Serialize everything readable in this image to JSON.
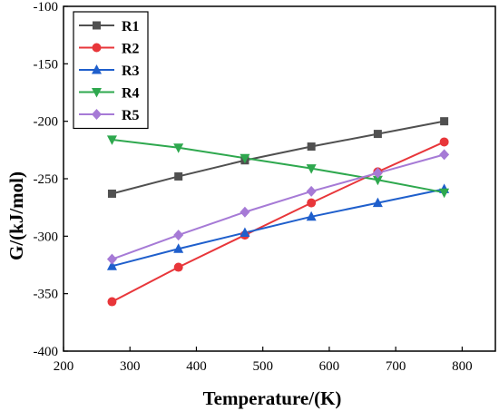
{
  "chart_data": {
    "type": "line",
    "title": "",
    "xlabel": "Temperature/(K)",
    "ylabel": "G/(kJ/mol)",
    "xlim": [
      200,
      850
    ],
    "ylim": [
      -400,
      -100
    ],
    "xticks": [
      200,
      300,
      400,
      500,
      600,
      700,
      800
    ],
    "yticks": [
      -400,
      -350,
      -300,
      -250,
      -200,
      -150,
      -100
    ],
    "grid": false,
    "legend_position": "top-left",
    "x": [
      273,
      373,
      473,
      573,
      673,
      773
    ],
    "series": [
      {
        "name": "R1",
        "color": "#505050",
        "marker": "square",
        "values": [
          -263,
          -248,
          -234,
          -222,
          -211,
          -200
        ]
      },
      {
        "name": "R2",
        "color": "#e8363a",
        "marker": "circle",
        "values": [
          -357,
          -327,
          -299,
          -271,
          -244,
          -218
        ]
      },
      {
        "name": "R3",
        "color": "#1f5fcc",
        "marker": "triangle-up",
        "values": [
          -326,
          -311,
          -297,
          -283,
          -271,
          -259
        ]
      },
      {
        "name": "R4",
        "color": "#2ea84e",
        "marker": "triangle-down",
        "values": [
          -216,
          -223,
          -232,
          -241,
          -251,
          -262
        ]
      },
      {
        "name": "R5",
        "color": "#a67ad6",
        "marker": "diamond",
        "values": [
          -320,
          -299,
          -279,
          -261,
          -245,
          -229
        ]
      }
    ]
  }
}
